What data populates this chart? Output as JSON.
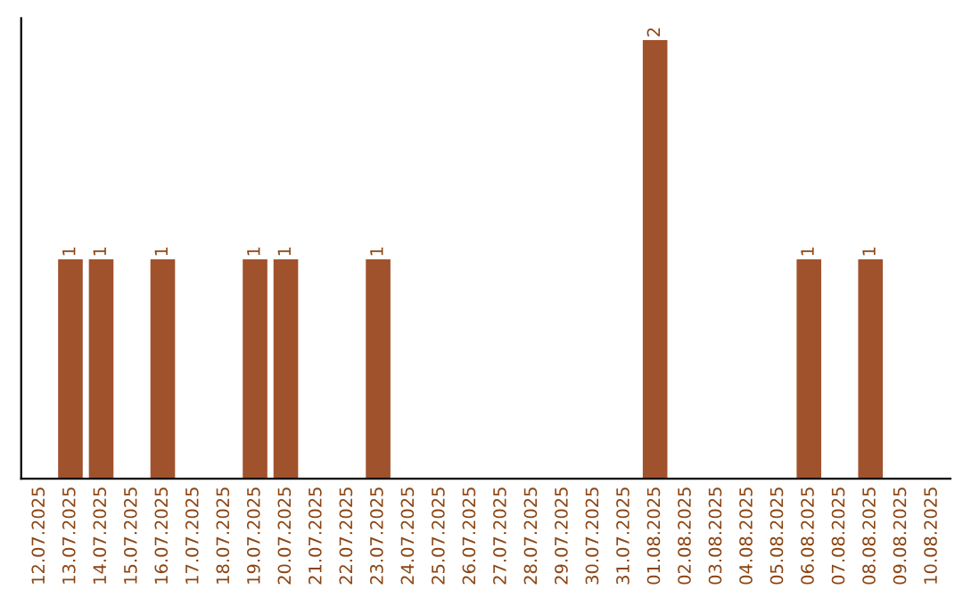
{
  "chart_data": {
    "type": "bar",
    "categories": [
      "12.07.2025",
      "13.07.2025",
      "14.07.2025",
      "15.07.2025",
      "16.07.2025",
      "17.07.2025",
      "18.07.2025",
      "19.07.2025",
      "20.07.2025",
      "21.07.2025",
      "22.07.2025",
      "23.07.2025",
      "24.07.2025",
      "25.07.2025",
      "26.07.2025",
      "27.07.2025",
      "28.07.2025",
      "29.07.2025",
      "30.07.2025",
      "31.07.2025",
      "01.08.2025",
      "02.08.2025",
      "03.08.2025",
      "04.08.2025",
      "05.08.2025",
      "06.08.2025",
      "07.08.2025",
      "08.08.2025",
      "09.08.2025",
      "10.08.2025"
    ],
    "values": [
      0,
      1,
      1,
      0,
      1,
      0,
      0,
      1,
      1,
      0,
      0,
      1,
      0,
      0,
      0,
      0,
      0,
      0,
      0,
      0,
      2,
      0,
      0,
      0,
      0,
      1,
      0,
      1,
      0,
      0
    ],
    "value_labels": [
      null,
      "1",
      "1",
      null,
      "1",
      null,
      null,
      "1",
      "1",
      null,
      null,
      "1",
      null,
      null,
      null,
      null,
      null,
      null,
      null,
      null,
      "2",
      null,
      null,
      null,
      null,
      "1",
      null,
      "1",
      null,
      null
    ],
    "color": "#a0522d",
    "tick_labels": "x",
    "grid": false,
    "legend": false
  }
}
